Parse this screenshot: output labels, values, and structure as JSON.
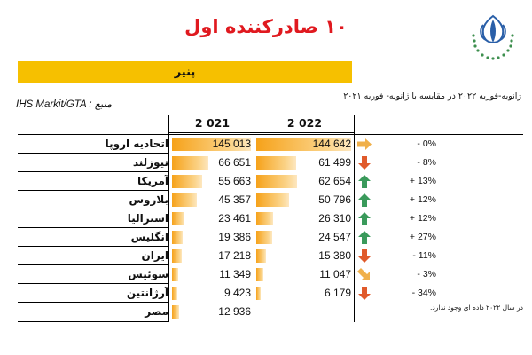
{
  "title": "۱۰ صادرکننده اول",
  "product": "پنیر",
  "subtitle": "ژانویه-فوریه ۲۰۲۲ در مقایسه با ژانویه- فوریه ۲۰۲۱",
  "source": "IHS Markit/GTA : منبع",
  "note": "در سال ۲۰۲۲ داده ای وجود ندارد.",
  "logo_icon": "tulip-wreath-logo-icon",
  "colors": {
    "title": "#e0191f",
    "product_bar": "#f6c000",
    "bar": "#f6a21a",
    "up": "#3a9a5b",
    "down": "#e05a2b",
    "flat": "#f0b04a"
  },
  "chart_data": {
    "type": "table",
    "columns": [
      "2 021",
      "2 022"
    ],
    "rows": [
      {
        "country": "اتحادیه اروپا",
        "v2021": 145013,
        "v2021_label": "145 013",
        "v2022": 144642,
        "v2022_label": "144 642",
        "trend": "flat",
        "change": "- 0%"
      },
      {
        "country": "نیوزلند",
        "v2021": 66651,
        "v2021_label": "66 651",
        "v2022": 61499,
        "v2022_label": "61 499",
        "trend": "down",
        "change": "- 8%"
      },
      {
        "country": "آمریکا",
        "v2021": 55663,
        "v2021_label": "55 663",
        "v2022": 62654,
        "v2022_label": "62 654",
        "trend": "up",
        "change": "+ 13%"
      },
      {
        "country": "بلاروس",
        "v2021": 45357,
        "v2021_label": "45 357",
        "v2022": 50796,
        "v2022_label": "50 796",
        "trend": "up",
        "change": "+ 12%"
      },
      {
        "country": "استرالیا",
        "v2021": 23461,
        "v2021_label": "23 461",
        "v2022": 26310,
        "v2022_label": "26 310",
        "trend": "up",
        "change": "+ 12%"
      },
      {
        "country": "انگلیس",
        "v2021": 19386,
        "v2021_label": "19 386",
        "v2022": 24547,
        "v2022_label": "24 547",
        "trend": "up",
        "change": "+ 27%"
      },
      {
        "country": "ایران",
        "v2021": 17218,
        "v2021_label": "17 218",
        "v2022": 15380,
        "v2022_label": "15 380",
        "trend": "down",
        "change": "- 11%"
      },
      {
        "country": "سوئیس",
        "v2021": 11349,
        "v2021_label": "11 349",
        "v2022": 11047,
        "v2022_label": "11 047",
        "trend": "down-right",
        "change": "- 3%"
      },
      {
        "country": "آرژانتین",
        "v2021": 9423,
        "v2021_label": "9 423",
        "v2022": 6179,
        "v2022_label": "6 179",
        "trend": "down",
        "change": "- 34%"
      },
      {
        "country": "مصر",
        "v2021": 12936,
        "v2021_label": "12 936",
        "v2022": null,
        "v2022_label": "",
        "trend": "",
        "change": ""
      }
    ]
  }
}
